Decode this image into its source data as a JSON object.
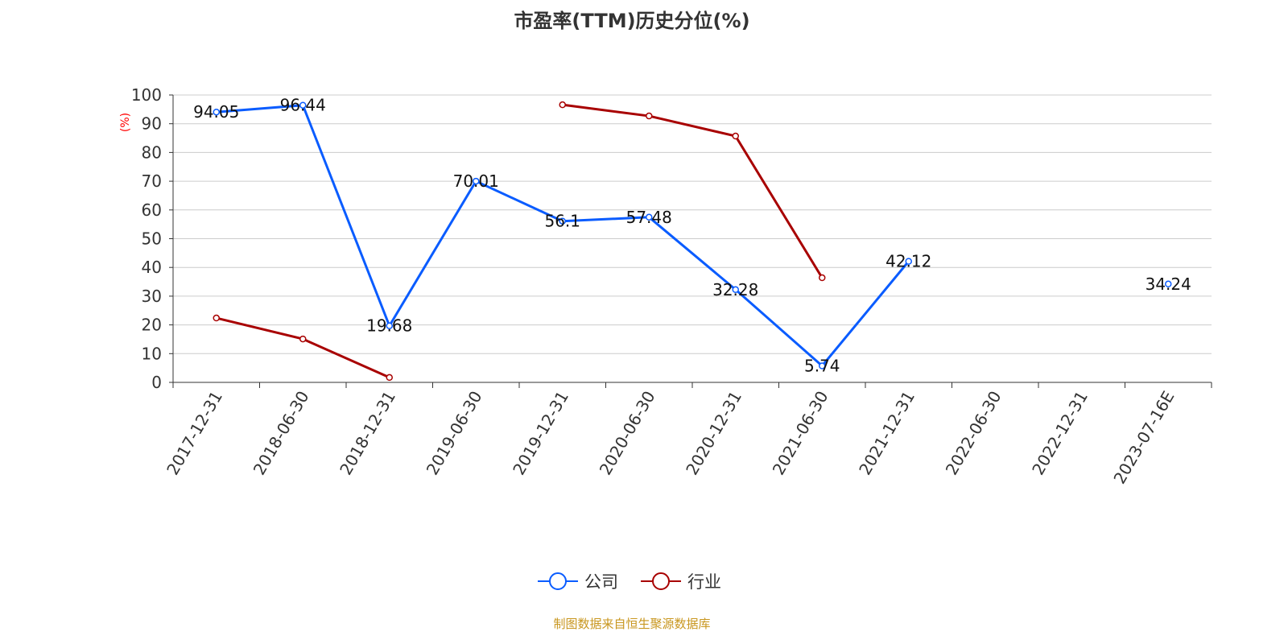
{
  "chart_data": {
    "type": "line",
    "title": "市盈率(TTM)历史分位(%)",
    "ylabel": "(%)",
    "xlabel": "",
    "ylim": [
      0,
      100
    ],
    "yticks": [
      0,
      10,
      20,
      30,
      40,
      50,
      60,
      70,
      80,
      90,
      100
    ],
    "grid": true,
    "legend_position": "bottom-center",
    "categories": [
      "2017-12-31",
      "2018-06-30",
      "2018-12-31",
      "2019-06-30",
      "2019-12-31",
      "2020-06-30",
      "2020-12-31",
      "2021-06-30",
      "2021-12-31",
      "2022-06-30",
      "2022-12-31",
      "2023-07-16E"
    ],
    "series": [
      {
        "name": "公司",
        "color": "#0a5cff",
        "labels": true,
        "values": [
          94.05,
          96.44,
          19.68,
          70.01,
          56.1,
          57.48,
          32.28,
          5.74,
          42.12,
          null,
          null,
          34.24
        ]
      },
      {
        "name": "行业",
        "color": "#a80000",
        "labels": false,
        "values": [
          22.4,
          15.1,
          1.7,
          null,
          96.6,
          92.7,
          85.7,
          36.4,
          null,
          null,
          null,
          null
        ]
      }
    ]
  },
  "source": "制图数据来自恒生聚源数据库"
}
